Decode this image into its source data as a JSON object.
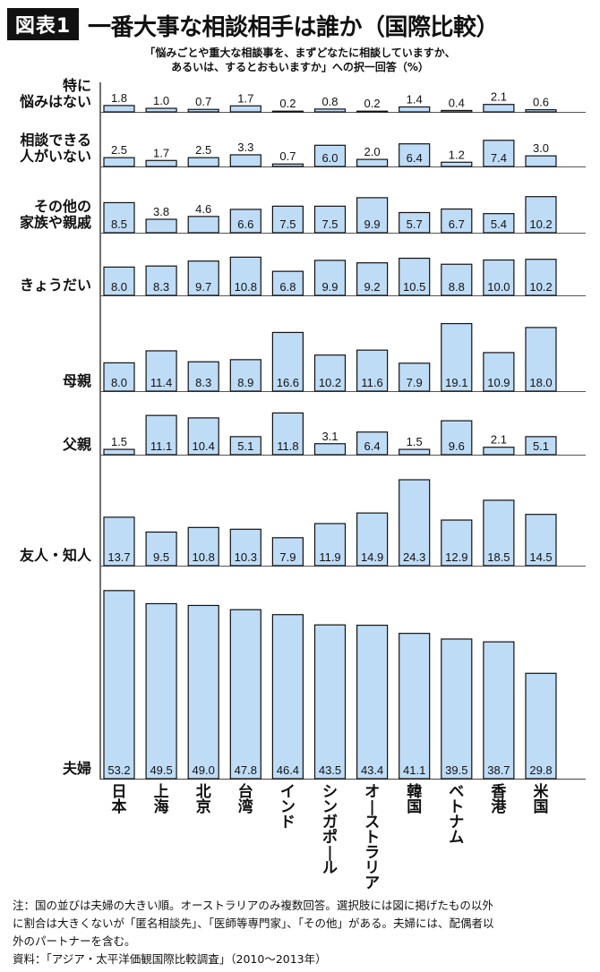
{
  "header": {
    "badge": "図表1",
    "title": "一番大事な相談相手は誰か（国際比較）",
    "question_line1": "「悩みごとや重大な相談事を、まずどなたに相談していますか、",
    "question_line2": "あるいは、するとおもいますか」への択一回答（%）"
  },
  "chart_data": {
    "type": "bar",
    "title": "一番大事な相談相手は誰か（国際比較）",
    "subtitle": "「悩みごとや重大な相談事を、まずどなたに相談していますか、あるいは、するとおもいますか」への択一回答（%）",
    "unit": "%",
    "categories": [
      "日本",
      "上海",
      "北京",
      "台湾",
      "インド",
      "シンガポール",
      "オーストラリア",
      "韓国",
      "ベトナム",
      "香港",
      "米国"
    ],
    "series": [
      {
        "name": "特に悩みはない",
        "label_lines": [
          "特に",
          "悩みはない"
        ],
        "values": [
          1.8,
          1.0,
          0.7,
          1.7,
          0.2,
          0.8,
          0.2,
          1.4,
          0.4,
          2.1,
          0.6
        ]
      },
      {
        "name": "相談できる人がいない",
        "label_lines": [
          "相談できる",
          "人がいない"
        ],
        "values": [
          2.5,
          1.7,
          2.5,
          3.3,
          0.7,
          6.0,
          2.0,
          6.4,
          1.2,
          7.4,
          3.0
        ]
      },
      {
        "name": "その他の家族や親戚",
        "label_lines": [
          "その他の",
          "家族や親戚"
        ],
        "values": [
          8.5,
          3.8,
          4.6,
          6.6,
          7.5,
          7.5,
          9.9,
          5.7,
          6.7,
          5.4,
          10.2
        ]
      },
      {
        "name": "きょうだい",
        "label_lines": [
          "きょうだい"
        ],
        "values": [
          8.0,
          8.3,
          9.7,
          10.8,
          6.8,
          9.9,
          9.2,
          10.5,
          8.8,
          10.0,
          10.2
        ]
      },
      {
        "name": "母親",
        "label_lines": [
          "母親"
        ],
        "values": [
          8.0,
          11.4,
          8.3,
          8.9,
          16.6,
          10.2,
          11.6,
          7.9,
          19.1,
          10.9,
          18.0
        ]
      },
      {
        "name": "父親",
        "label_lines": [
          "父親"
        ],
        "values": [
          1.5,
          11.1,
          10.4,
          5.1,
          11.8,
          3.1,
          6.4,
          1.5,
          9.6,
          2.1,
          5.1
        ]
      },
      {
        "name": "友人・知人",
        "label_lines": [
          "友人・知人"
        ],
        "values": [
          13.7,
          9.5,
          10.8,
          10.3,
          7.9,
          11.9,
          14.9,
          24.3,
          12.9,
          18.5,
          14.5
        ]
      },
      {
        "name": "夫婦",
        "label_lines": [
          "夫婦"
        ],
        "values": [
          53.2,
          49.5,
          49.0,
          47.8,
          46.4,
          43.5,
          43.4,
          41.1,
          39.5,
          38.7,
          29.8
        ]
      }
    ],
    "xlabel": "",
    "ylabel": "",
    "grid": false,
    "legend": "none",
    "colors": {
      "bar_fill": "#bfdcf7",
      "bar_stroke": "#111111",
      "separator": "#555555"
    }
  },
  "notes": {
    "line1": "注：国の並びは夫婦の大きい順。オーストラリアのみ複数回答。選択肢には図に掲げたもの以外",
    "line2": "に割合は大きくないが「匿名相談先」、「医師等専門家」、「その他」がある。夫婦には、配偶者以",
    "line3": "外のパートナーを含む。",
    "source": "資料：「アジア・太平洋価観国際比較調査」（2010〜2013年）"
  }
}
